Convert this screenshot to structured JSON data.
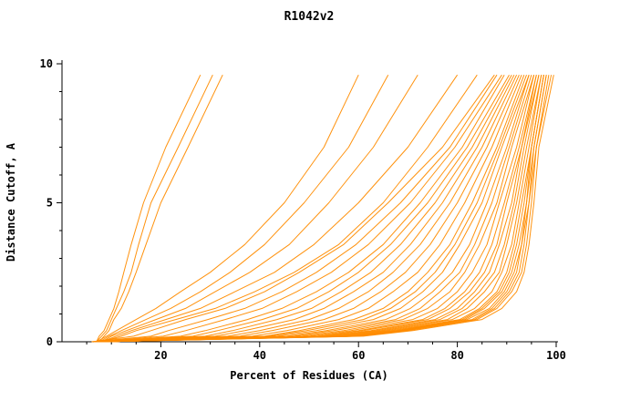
{
  "chart_data": {
    "type": "line",
    "title": "R1042v2",
    "xlabel": "Percent of Residues (CA)",
    "ylabel": "Distance Cutoff, A",
    "xlim": [
      0,
      100
    ],
    "ylim": [
      0,
      10
    ],
    "x_major_ticks": [
      20,
      40,
      60,
      80,
      100
    ],
    "x_minor_step": 5,
    "y_major_ticks": [
      0,
      5,
      10
    ],
    "y_minor_step": 1,
    "grid": false,
    "legend": "none",
    "line_color": "#ff8c00",
    "curve_y_values": [
      0,
      0.2,
      0.4,
      0.8,
      1.2,
      1.8,
      2.5,
      3.5,
      5,
      7,
      9.6
    ],
    "curves_x_values": [
      [
        7,
        7.5,
        8.5,
        9.5,
        10.5,
        11.5,
        12.5,
        14,
        16.5,
        21,
        28
      ],
      [
        7,
        8,
        9,
        10,
        11,
        12.5,
        14,
        15.5,
        18,
        23.5,
        30.5
      ],
      [
        7.5,
        8.5,
        9.5,
        10.5,
        12,
        13.5,
        15,
        17,
        20,
        25.5,
        32.5
      ],
      [
        7,
        9,
        11,
        15,
        19,
        24,
        30,
        37,
        45,
        53,
        60
      ],
      [
        7.5,
        9.5,
        12,
        17,
        22,
        28,
        34,
        41,
        49,
        58,
        66
      ],
      [
        8,
        10,
        13,
        19,
        25,
        31,
        38,
        46,
        54,
        63,
        72
      ],
      [
        8,
        11,
        14,
        21,
        28,
        35,
        43,
        51,
        60,
        70,
        80
      ],
      [
        8,
        12,
        15,
        23,
        31,
        39,
        47,
        56,
        65,
        74,
        84
      ],
      [
        6,
        14.5,
        18,
        25,
        33,
        41,
        48,
        57,
        66,
        77,
        87.5
      ],
      [
        6,
        18,
        21.5,
        29.5,
        37,
        44.5,
        51.5,
        59.5,
        68.5,
        78.5,
        88
      ],
      [
        6.5,
        20.5,
        25,
        33,
        40.5,
        47.5,
        54.5,
        62,
        70.5,
        79.5,
        89
      ],
      [
        6.5,
        24,
        29,
        37.5,
        44.5,
        51.5,
        58,
        65,
        72.5,
        81,
        89.5
      ],
      [
        6.5,
        26.5,
        31.5,
        40.5,
        47.5,
        54,
        60,
        66.5,
        74,
        82,
        90.5
      ],
      [
        7,
        29,
        34.5,
        43.5,
        50.5,
        56.5,
        62.5,
        68.5,
        75.5,
        83,
        91
      ],
      [
        7,
        31,
        37,
        47,
        53,
        59,
        65,
        70.5,
        77,
        84,
        91.5
      ],
      [
        7,
        33.5,
        40,
        50,
        56,
        62,
        67,
        72.5,
        78.5,
        85,
        92
      ],
      [
        7,
        36,
        42.5,
        53,
        59,
        64.5,
        69.5,
        74.5,
        80,
        86,
        92.5
      ],
      [
        7,
        38.5,
        45.5,
        56,
        62,
        67,
        72,
        76.5,
        81.5,
        87,
        93
      ],
      [
        7,
        41,
        48,
        59,
        65,
        70,
        74,
        78.5,
        83,
        88,
        93.5
      ],
      [
        7.5,
        42,
        49.5,
        61,
        66.5,
        71.5,
        75.5,
        79.5,
        84,
        88.5,
        94
      ],
      [
        7.5,
        43.5,
        51.5,
        63,
        68.5,
        73,
        77,
        80.5,
        85,
        89,
        94.5
      ],
      [
        7.5,
        45.5,
        53.5,
        65.5,
        70.5,
        75,
        79,
        82.5,
        86,
        90,
        94.5
      ],
      [
        7.5,
        47,
        55,
        67.5,
        72.5,
        76.5,
        80.5,
        83.5,
        87,
        90.5,
        95
      ],
      [
        7.5,
        48.5,
        57,
        69,
        74,
        78.5,
        81.5,
        84.5,
        88,
        91,
        95.5
      ],
      [
        7.5,
        50,
        58.5,
        71,
        76,
        80,
        83,
        86,
        88.5,
        92,
        95.5
      ],
      [
        7.5,
        51.5,
        60,
        73,
        77.5,
        81.5,
        84.5,
        87,
        89.5,
        92.5,
        96
      ],
      [
        8,
        52.5,
        61,
        74,
        78.5,
        82.5,
        85.5,
        88,
        90,
        93,
        96
      ],
      [
        8,
        53.5,
        62.5,
        75.5,
        80,
        83.5,
        86.5,
        88.5,
        91,
        93,
        96.5
      ],
      [
        8,
        54,
        63.5,
        76.5,
        81,
        84.5,
        87.5,
        89.5,
        91.5,
        93.5,
        96.5
      ],
      [
        8,
        55,
        64.5,
        78,
        82,
        85.5,
        88.5,
        90,
        92,
        94,
        97
      ],
      [
        8,
        56,
        65.5,
        79,
        83.5,
        87,
        89,
        91,
        92.5,
        94.5,
        97
      ],
      [
        8,
        57,
        66.5,
        80.5,
        84.5,
        88,
        90,
        91.5,
        93,
        95,
        97.5
      ],
      [
        8,
        57.5,
        67.5,
        81,
        85,
        88.5,
        90.5,
        92,
        93.5,
        95,
        97.5
      ],
      [
        8,
        58,
        68,
        81.5,
        85.5,
        89,
        91,
        92.5,
        94,
        95,
        97.5
      ],
      [
        8,
        58.5,
        68.5,
        82,
        86.5,
        89.5,
        91.5,
        93,
        94,
        95.5,
        98
      ],
      [
        8,
        59,
        69,
        83,
        87,
        90,
        92,
        93,
        94.5,
        95.5,
        98
      ],
      [
        8,
        59.5,
        69.5,
        83.5,
        87.5,
        90.5,
        92.5,
        93.5,
        94.5,
        96,
        98.5
      ],
      [
        8,
        60,
        70,
        84,
        88,
        91,
        93,
        94,
        95,
        96,
        99
      ],
      [
        8,
        61,
        71,
        85,
        89,
        92,
        93.5,
        94.5,
        95.5,
        96.5,
        99.5
      ]
    ]
  }
}
